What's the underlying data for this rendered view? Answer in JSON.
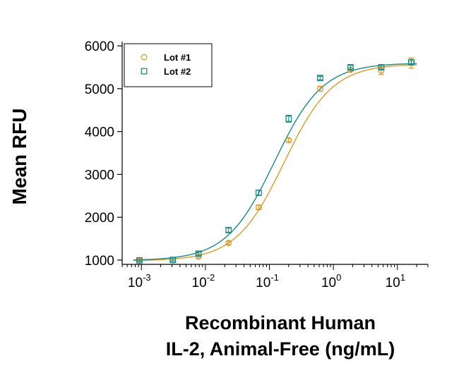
{
  "chart_data": {
    "type": "scatter",
    "xscale": "log",
    "xlim": [
      0.0005,
      30
    ],
    "ylim": [
      900,
      6100
    ],
    "ylabel": "Mean RFU",
    "xlabel_line1": "Recombinant Human",
    "xlabel_line2": "IL-2, Animal-Free (ng/mL)",
    "yticks": [
      "1000",
      "2000",
      "3000",
      "4000",
      "5000",
      "6000"
    ],
    "xticks": [
      {
        "base": "10",
        "exp": "-3"
      },
      {
        "base": "10",
        "exp": "-2"
      },
      {
        "base": "10",
        "exp": "-1"
      },
      {
        "base": "10",
        "exp": "0"
      },
      {
        "base": "10",
        "exp": "1"
      }
    ],
    "legend": "top-left",
    "series": [
      {
        "name": "Lot #1",
        "marker": "circle",
        "color": "#d99a2b",
        "x": [
          0.00093,
          0.0031,
          0.0078,
          0.023,
          0.068,
          0.2,
          0.62,
          1.85,
          5.6,
          16.5
        ],
        "y": [
          985,
          995,
          1080,
          1400,
          2230,
          3800,
          5000,
          5440,
          5420,
          5600
        ],
        "err": [
          25,
          25,
          30,
          40,
          50,
          40,
          60,
          40,
          90,
          120
        ],
        "fit": {
          "bottom": 980,
          "top": 5580,
          "ec50": 0.17,
          "hill": 1.15
        }
      },
      {
        "name": "Lot #2",
        "marker": "square",
        "color": "#1a8a87",
        "x": [
          0.00093,
          0.0031,
          0.0078,
          0.023,
          0.068,
          0.2,
          0.62,
          1.85,
          5.6,
          16.5
        ],
        "y": [
          995,
          1005,
          1150,
          1700,
          2570,
          4300,
          5250,
          5500,
          5500,
          5620
        ],
        "err": [
          25,
          25,
          40,
          50,
          60,
          80,
          40,
          50,
          50,
          60
        ],
        "fit": {
          "bottom": 990,
          "top": 5600,
          "ec50": 0.12,
          "hill": 1.15
        }
      }
    ]
  }
}
